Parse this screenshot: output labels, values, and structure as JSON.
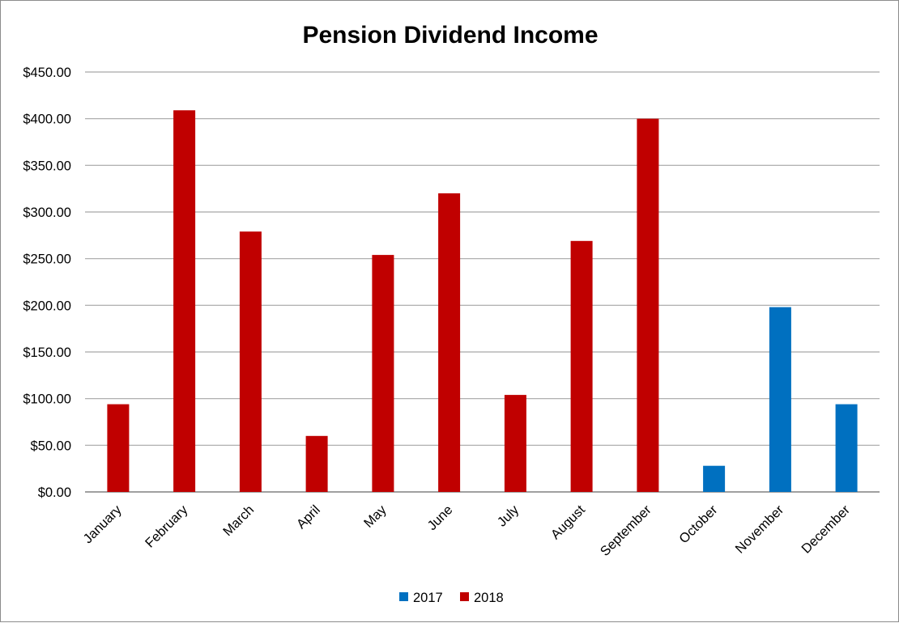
{
  "chart_data": {
    "type": "bar",
    "title": "Pension Dividend Income",
    "xlabel": "",
    "ylabel": "",
    "categories": [
      "January",
      "February",
      "March",
      "April",
      "May",
      "June",
      "July",
      "August",
      "September",
      "October",
      "November",
      "December"
    ],
    "series": [
      {
        "name": "2017",
        "color": "#0070c0",
        "values": [
          null,
          null,
          null,
          null,
          null,
          null,
          null,
          null,
          null,
          28,
          198,
          94
        ]
      },
      {
        "name": "2018",
        "color": "#c00000",
        "values": [
          94,
          409,
          279,
          60,
          254,
          320,
          104,
          269,
          400,
          null,
          null,
          null
        ]
      }
    ],
    "ylim": [
      0,
      450
    ],
    "ytick_values": [
      0,
      50,
      100,
      150,
      200,
      250,
      300,
      350,
      400,
      450
    ],
    "ytick_labels": [
      "$0.00",
      "$50.00",
      "$100.00",
      "$150.00",
      "$200.00",
      "$250.00",
      "$300.00",
      "$350.00",
      "$400.00",
      "$450.00"
    ],
    "grid": true,
    "legend_position": "bottom-center"
  }
}
